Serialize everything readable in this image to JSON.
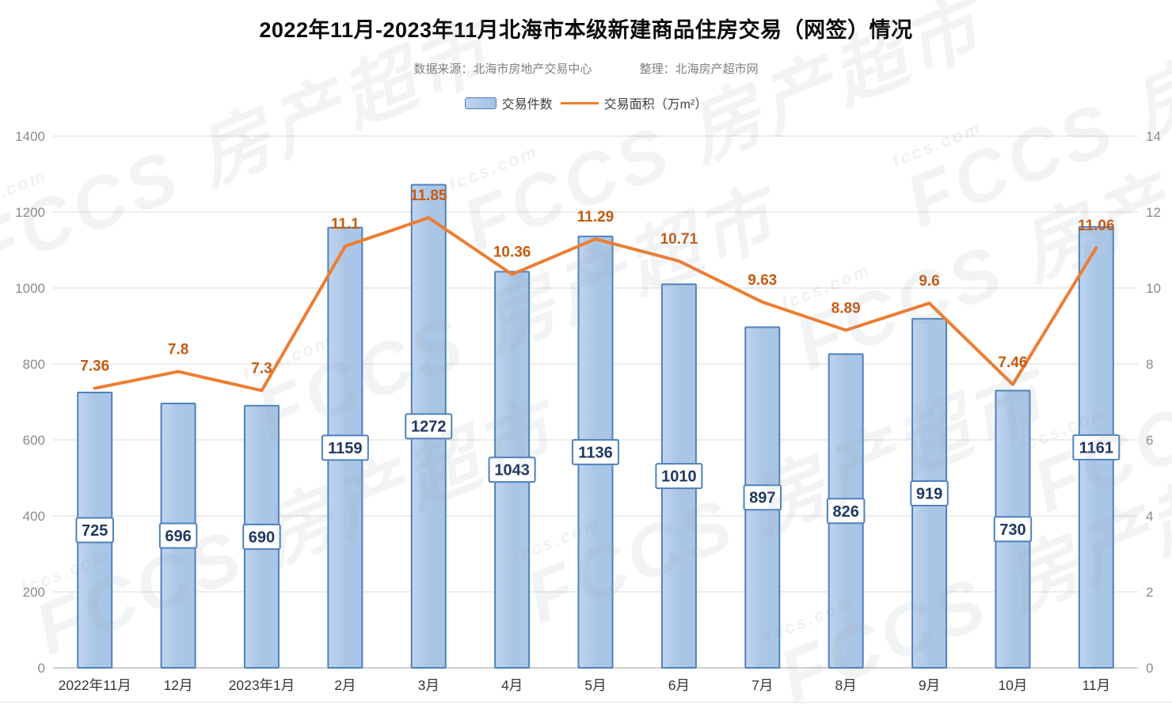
{
  "header": {
    "title": "2022年11月-2023年11月北海市本级新建商品住房交易（网签）情况",
    "source": "数据来源：北海市房地产交易中心",
    "organizer": "整理：北海房产超市网"
  },
  "legend": {
    "bar_label": "交易件数",
    "line_label": "交易面积（万m²）"
  },
  "watermark": {
    "brand": "FCCS",
    "name": "房产超市",
    "domain": "fccs.com"
  },
  "chart_data": {
    "type": "bar",
    "title": "2022年11月-2023年11月北海市本级新建商品住房交易（网签）情况",
    "categories": [
      "2022年11月",
      "12月",
      "2023年1月",
      "2月",
      "3月",
      "4月",
      "5月",
      "6月",
      "7月",
      "8月",
      "9月",
      "10月",
      "11月"
    ],
    "series": [
      {
        "name": "交易件数",
        "type": "bar",
        "axis": "left",
        "values": [
          725,
          696,
          690,
          1159,
          1272,
          1043,
          1136,
          1010,
          897,
          826,
          919,
          730,
          1161
        ]
      },
      {
        "name": "交易面积（万m²）",
        "type": "line",
        "axis": "right",
        "values": [
          7.36,
          7.8,
          7.3,
          11.1,
          11.85,
          10.36,
          11.29,
          10.71,
          9.63,
          8.89,
          9.6,
          7.46,
          11.06
        ]
      }
    ],
    "left_axis": {
      "min": 0,
      "max": 1400,
      "step": 200,
      "ticks": [
        0,
        200,
        400,
        600,
        800,
        1000,
        1200,
        1400
      ]
    },
    "right_axis": {
      "min": 0,
      "max": 14,
      "step": 2,
      "ticks": [
        0,
        2,
        4,
        6,
        8,
        10,
        12,
        14
      ]
    },
    "grid": true,
    "legend_position": "top",
    "colors": {
      "bar_fill": "#aac6e6",
      "bar_fill_light": "#c0d4ee",
      "bar_stroke": "#4e81bd",
      "line": "#ed7d31",
      "line_label": "#c55a11",
      "bar_label_text": "#1f3864",
      "bar_label_bg": "#ffffff",
      "grid_line": "#d8d8d8",
      "axis_line": "#bfbfbf",
      "tick_text": "#8a8a8a",
      "x_text": "#363636"
    }
  }
}
